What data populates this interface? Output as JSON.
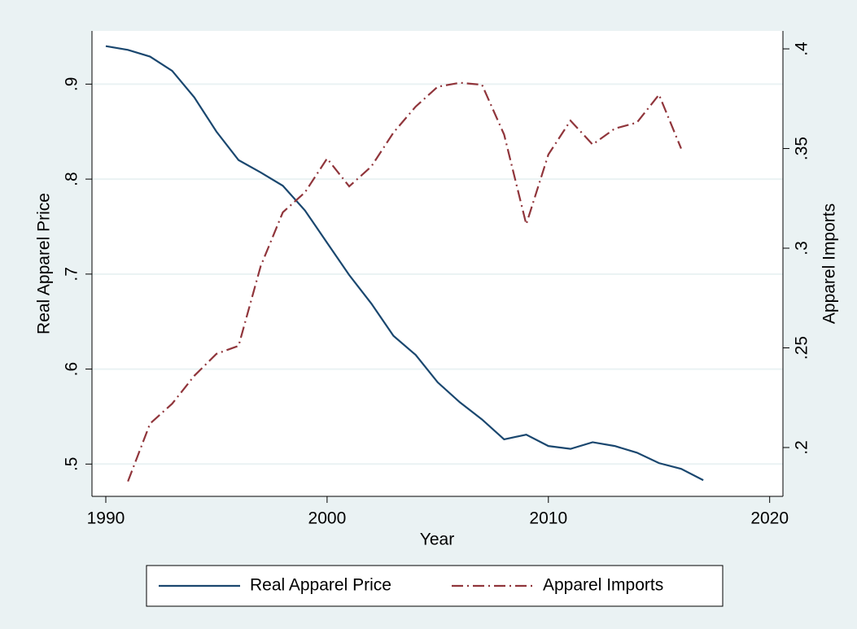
{
  "chart_data": {
    "type": "line",
    "x": [
      1990,
      1991,
      1992,
      1993,
      1994,
      1995,
      1996,
      1997,
      1998,
      1999,
      2000,
      2001,
      2002,
      2003,
      2004,
      2005,
      2006,
      2007,
      2008,
      2009,
      2010,
      2011,
      2012,
      2013,
      2014,
      2015,
      2016,
      2017
    ],
    "series": [
      {
        "name": "Real Apparel Price",
        "color": "#1a476f",
        "dash": "solid",
        "values": [
          0.94,
          0.936,
          0.929,
          0.914,
          0.886,
          0.85,
          0.82,
          0.807,
          0.793,
          0.767,
          0.733,
          0.699,
          0.669,
          0.635,
          0.615,
          0.586,
          0.565,
          0.547,
          0.526,
          0.531,
          0.519,
          0.516,
          0.523,
          0.519,
          0.512,
          0.501,
          0.495,
          0.483
        ]
      },
      {
        "name": "Apparel Imports",
        "color": "#90353b",
        "dash": "dashdot",
        "axis": "y2",
        "values": [
          null,
          0.183,
          0.212,
          0.222,
          0.236,
          0.247,
          0.251,
          0.291,
          0.318,
          0.328,
          0.345,
          0.331,
          0.341,
          0.358,
          0.371,
          0.381,
          0.383,
          0.382,
          0.357,
          0.312,
          0.347,
          0.364,
          0.352,
          0.36,
          0.363,
          0.377,
          0.35,
          null
        ]
      }
    ],
    "xlabel": "Year",
    "ylabel": "Real Apparel Price",
    "y2label": "Apparel Imports",
    "xlim": [
      1989.375,
      2020.6
    ],
    "xticks": [
      1990,
      2000,
      2010,
      2020
    ],
    "ylim": [
      0.466,
      0.956
    ],
    "yticks": [
      {
        "value": 0.5,
        "label": ".5"
      },
      {
        "value": 0.6,
        "label": ".6"
      },
      {
        "value": 0.7,
        "label": ".7"
      },
      {
        "value": 0.8,
        "label": ".8"
      },
      {
        "value": 0.9,
        "label": ".9"
      }
    ],
    "y2lim": [
      0.1755,
      0.409
    ],
    "y2ticks": [
      {
        "value": 0.2,
        "label": ".2"
      },
      {
        "value": 0.25,
        "label": ".25"
      },
      {
        "value": 0.3,
        "label": ".3"
      },
      {
        "value": 0.35,
        "label": ".35"
      },
      {
        "value": 0.4,
        "label": ".4"
      }
    ],
    "grid": true,
    "legend": "bottom"
  }
}
